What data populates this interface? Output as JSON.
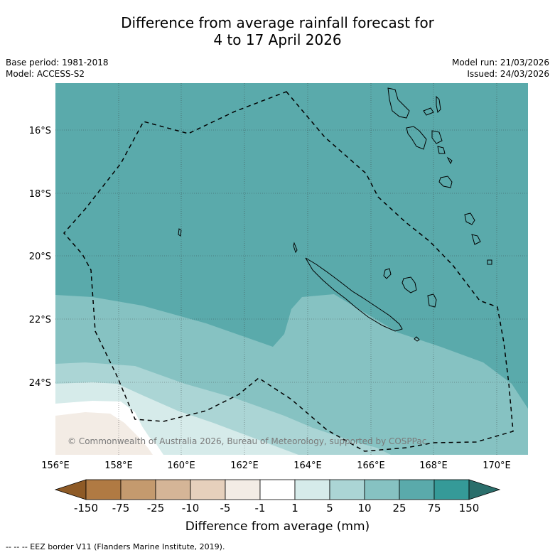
{
  "title": {
    "line1": "Difference from average rainfall forecast for",
    "line2": "4 to 17 April 2026"
  },
  "meta": {
    "base_period": "Base period: 1981-2018",
    "model": "Model: ACCESS-S2",
    "model_run": "Model run: 21/03/2026",
    "issued": "Issued: 24/03/2026"
  },
  "axes": {
    "lat_labels": [
      "16°S",
      "18°S",
      "20°S",
      "22°S",
      "24°S"
    ],
    "lon_labels": [
      "156°E",
      "158°E",
      "160°E",
      "162°E",
      "164°E",
      "166°E",
      "168°E",
      "170°E"
    ]
  },
  "copyright": "© Commonwealth of Australia 2026, Bureau of Meteorology, supported by COSPPac",
  "colorbar": {
    "labels": [
      "-150",
      "-75",
      "-25",
      "-10",
      "-5",
      "-1",
      "1",
      "5",
      "10",
      "25",
      "75",
      "150"
    ],
    "colors": [
      "#8e5a26",
      "#b07a43",
      "#c49a6e",
      "#d5b597",
      "#e6d0bc",
      "#f3ece5",
      "#ffffff",
      "#d6ebea",
      "#abd5d5",
      "#86c2c2",
      "#5aaaab",
      "#359a98",
      "#2a6e6b"
    ],
    "title": "Difference from average (mm)"
  },
  "footnote": "-- -- -- EEZ border V11 (Flanders Marine Institute, 2019)."
}
